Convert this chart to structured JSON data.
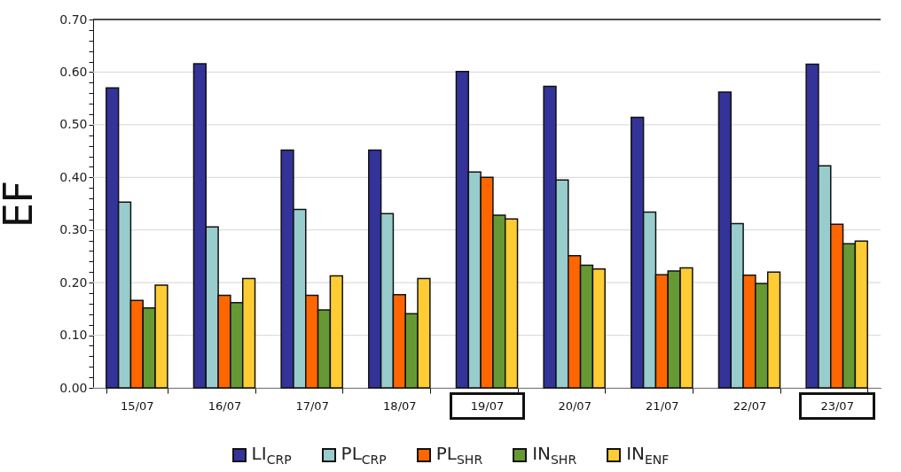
{
  "chart_data": {
    "type": "bar",
    "ylabel": "EF",
    "categories": [
      "15/07",
      "16/07",
      "17/07",
      "18/07",
      "19/07",
      "20/07",
      "21/07",
      "22/07",
      "23/07"
    ],
    "series": [
      {
        "name": "LI$_{CRP}$",
        "color": "#333399",
        "values": [
          0.57,
          0.616,
          0.452,
          0.452,
          0.601,
          0.573,
          0.514,
          0.562,
          0.615
        ]
      },
      {
        "name": "PL$_{CRP}$",
        "color": "#99cccc",
        "values": [
          0.353,
          0.306,
          0.339,
          0.331,
          0.41,
          0.395,
          0.334,
          0.312,
          0.422
        ]
      },
      {
        "name": "PL$_{SHR}$",
        "color": "#ff6600",
        "values": [
          0.166,
          0.176,
          0.176,
          0.177,
          0.4,
          0.251,
          0.215,
          0.214,
          0.311
        ]
      },
      {
        "name": "IN$_{SHR}$",
        "color": "#669933",
        "values": [
          0.152,
          0.162,
          0.148,
          0.141,
          0.328,
          0.233,
          0.222,
          0.198,
          0.274
        ]
      },
      {
        "name": "IN$_{ENF}$",
        "color": "#ffcc33",
        "values": [
          0.195,
          0.208,
          0.213,
          0.208,
          0.321,
          0.226,
          0.228,
          0.22,
          0.279
        ]
      }
    ],
    "ylim": [
      0,
      0.7
    ],
    "yticks": [
      {
        "value": 0,
        "label": "0.00"
      },
      {
        "value": 0.02,
        "label": null
      },
      {
        "value": 0.04,
        "label": null
      },
      {
        "value": 0.06,
        "label": null
      },
      {
        "value": 0.08,
        "label": null
      },
      {
        "value": 0.1,
        "label": "0.10"
      },
      {
        "value": 0.12,
        "label": null
      },
      {
        "value": 0.14,
        "label": null
      },
      {
        "value": 0.16,
        "label": null
      },
      {
        "value": 0.18,
        "label": null
      },
      {
        "value": 0.2,
        "label": "0.20"
      },
      {
        "value": 0.22,
        "label": null
      },
      {
        "value": 0.24,
        "label": null
      },
      {
        "value": 0.26,
        "label": null
      },
      {
        "value": 0.28,
        "label": null
      },
      {
        "value": 0.3,
        "label": "0.30"
      },
      {
        "value": 0.32,
        "label": null
      },
      {
        "value": 0.34,
        "label": null
      },
      {
        "value": 0.36,
        "label": null
      },
      {
        "value": 0.38,
        "label": null
      },
      {
        "value": 0.4,
        "label": "0.40"
      },
      {
        "value": 0.42,
        "label": null
      },
      {
        "value": 0.44,
        "label": null
      },
      {
        "value": 0.46,
        "label": null
      },
      {
        "value": 0.48,
        "label": null
      },
      {
        "value": 0.5,
        "label": "0.50"
      },
      {
        "value": 0.52,
        "label": null
      },
      {
        "value": 0.54,
        "label": null
      },
      {
        "value": 0.56,
        "label": null
      },
      {
        "value": 0.58,
        "label": null
      },
      {
        "value": 0.6,
        "label": "0.60"
      },
      {
        "value": 0.62,
        "label": null
      },
      {
        "value": 0.64,
        "label": null
      },
      {
        "value": 0.66,
        "label": null
      },
      {
        "value": 0.68,
        "label": null
      },
      {
        "value": 0.7,
        "label": "0.70"
      }
    ],
    "grid": "y",
    "legend": "bottom"
  }
}
